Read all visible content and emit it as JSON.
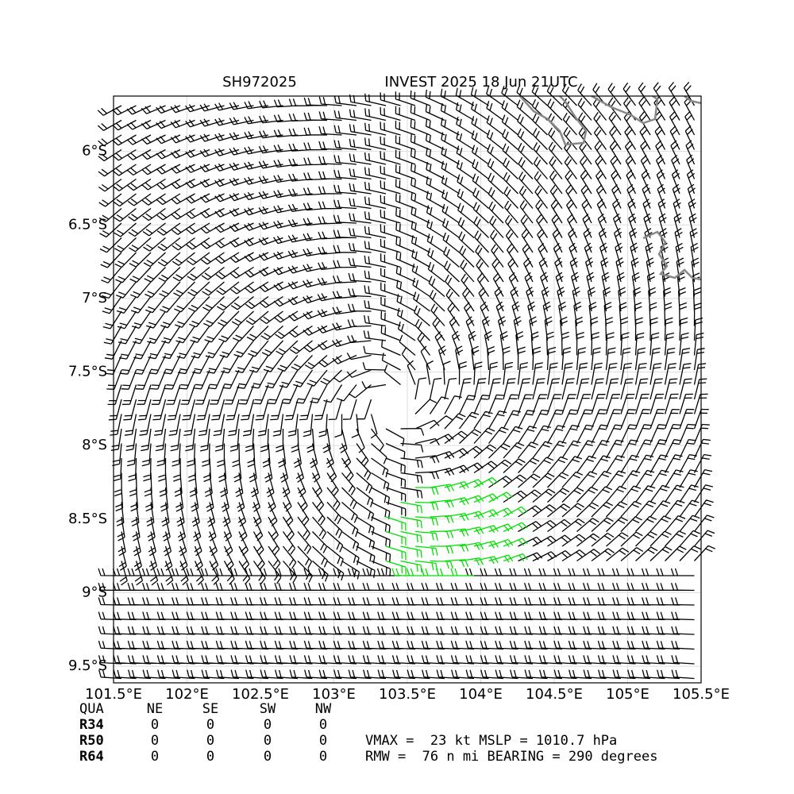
{
  "title_left": "SH972025",
  "title_right": "INVEST 2025 18 Jun 21UTC",
  "xlim": [
    101.5,
    105.5
  ],
  "ylim": [
    -9.613,
    -5.624
  ],
  "xticks": [
    {
      "value": 101.5,
      "label": "101.5°E"
    },
    {
      "value": 102,
      "label": "102°E"
    },
    {
      "value": 102.5,
      "label": "102.5°E"
    },
    {
      "value": 103,
      "label": "103°E"
    },
    {
      "value": 103.5,
      "label": "103.5°E"
    },
    {
      "value": 104,
      "label": "104°E"
    },
    {
      "value": 104.5,
      "label": "104.5°E"
    },
    {
      "value": 105,
      "label": "105°E"
    },
    {
      "value": 105.5,
      "label": "105.5°E"
    }
  ],
  "yticks": [
    {
      "value": -6,
      "label": "6°S"
    },
    {
      "value": -6.5,
      "label": "6.5°S"
    },
    {
      "value": -7,
      "label": "7°S"
    },
    {
      "value": -7.5,
      "label": "7.5°S"
    },
    {
      "value": -8,
      "label": "8°S"
    },
    {
      "value": -8.5,
      "label": "8.5°S"
    },
    {
      "value": -9,
      "label": "9°S"
    },
    {
      "value": -9.5,
      "label": "9.5°S"
    }
  ],
  "table": {
    "header": [
      "QUA",
      "NE",
      "SE",
      "SW",
      "NW"
    ],
    "rows": [
      [
        "R34",
        "0",
        "0",
        "0",
        "0"
      ],
      [
        "R50",
        "0",
        "0",
        "0",
        "0"
      ],
      [
        "R64",
        "0",
        "0",
        "0",
        "0"
      ]
    ]
  },
  "stats": [
    "VMAX =  23 kt MSLP = 1010.7 hPa",
    "RMW =  76 n mi BEARING = 290 degrees"
  ]
}
